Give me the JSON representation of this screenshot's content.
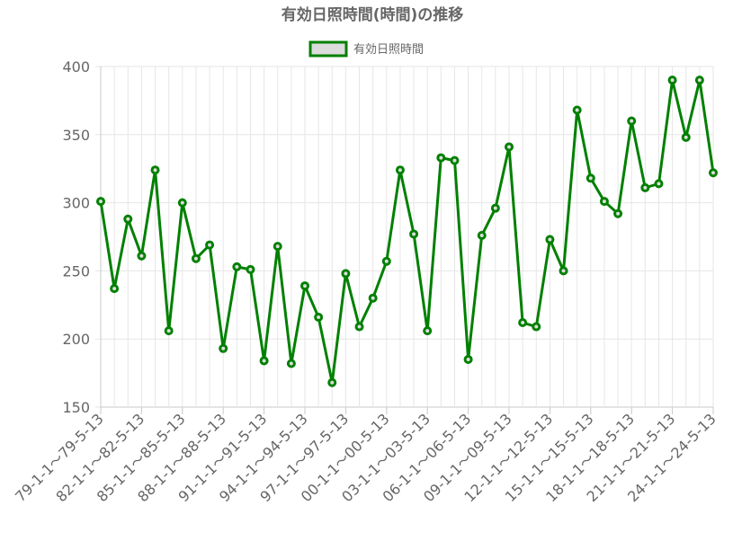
{
  "chart_data": {
    "type": "line",
    "title": "有効日照時間(時間)の推移",
    "legend": {
      "position": "top",
      "label": "有効日照時間"
    },
    "series": [
      {
        "name": "有効日照時間",
        "color": "#008000",
        "fill": "#dcdcdc",
        "values": [
          301,
          237,
          288,
          261,
          324,
          206,
          300,
          259,
          269,
          193,
          253,
          251,
          184,
          268,
          182,
          239,
          216,
          168,
          248,
          209,
          230,
          257,
          324,
          277,
          206,
          333,
          331,
          185,
          276,
          296,
          341,
          212,
          209,
          273,
          250,
          368,
          318,
          301,
          292,
          360,
          311,
          314,
          390,
          348,
          390,
          322
        ]
      }
    ],
    "x_ticks": [
      "79-1-1～79-5-13",
      "82-1-1～82-5-13",
      "85-1-1～85-5-13",
      "88-1-1～88-5-13",
      "91-1-1～91-5-13",
      "94-1-1～94-5-13",
      "97-1-1～97-5-13",
      "00-1-1～00-5-13",
      "03-1-1～03-5-13",
      "06-1-1～06-5-13",
      "09-1-1～09-5-13",
      "12-1-1～12-5-13",
      "15-1-1～15-5-13",
      "18-1-1～18-5-13",
      "21-1-1～21-5-13",
      "24-1-1～24-5-13"
    ],
    "y_ticks": [
      150,
      200,
      250,
      300,
      350,
      400
    ],
    "ylim": [
      150,
      400
    ],
    "grid": true,
    "xlabel": "",
    "ylabel": ""
  }
}
